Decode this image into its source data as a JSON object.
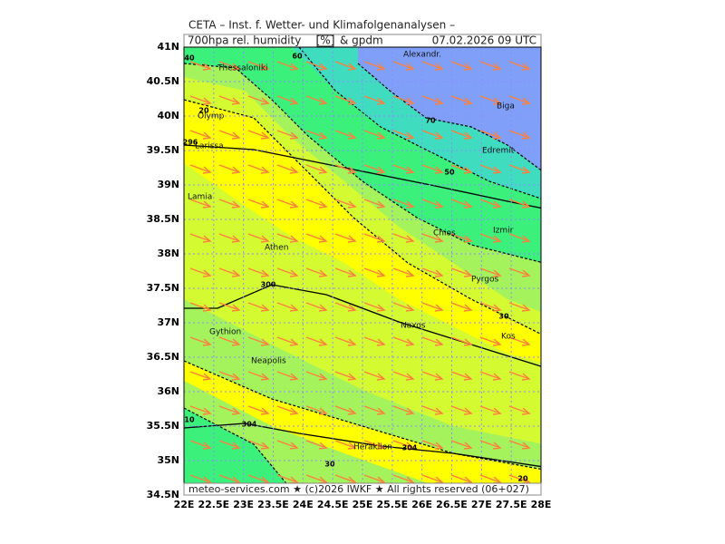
{
  "header": {
    "title": "CETA – Inst. f. Wetter- und Klimafolgenanalysen –",
    "field": "700hpa rel. humidity",
    "unit": "[%]",
    "field2": "& gpdm",
    "time": "07.02.2026 09 UTC"
  },
  "axes": {
    "lat_ticks": [
      {
        "value": 41,
        "label": "41N"
      },
      {
        "value": 40.5,
        "label": "40.5N"
      },
      {
        "value": 40,
        "label": "40N"
      },
      {
        "value": 39.5,
        "label": "39.5N"
      },
      {
        "value": 39,
        "label": "39N"
      },
      {
        "value": 38.5,
        "label": "38.5N"
      },
      {
        "value": 38,
        "label": "38N"
      },
      {
        "value": 37.5,
        "label": "37.5N"
      },
      {
        "value": 37,
        "label": "37N"
      },
      {
        "value": 36.5,
        "label": "36.5N"
      },
      {
        "value": 36,
        "label": "36N"
      },
      {
        "value": 35.5,
        "label": "35.5N"
      },
      {
        "value": 35,
        "label": "35N"
      },
      {
        "value": 34.5,
        "label": "34.5N"
      }
    ],
    "lon_ticks": [
      {
        "value": 22,
        "label": "22E"
      },
      {
        "value": 22.5,
        "label": "22.5E"
      },
      {
        "value": 23,
        "label": "23E"
      },
      {
        "value": 23.5,
        "label": "23.5E"
      },
      {
        "value": 24,
        "label": "24E"
      },
      {
        "value": 24.5,
        "label": "24.5E"
      },
      {
        "value": 25,
        "label": "25E"
      },
      {
        "value": 25.5,
        "label": "25.5E"
      },
      {
        "value": 26,
        "label": "26E"
      },
      {
        "value": 26.5,
        "label": "26.5E"
      },
      {
        "value": 27,
        "label": "27E"
      },
      {
        "value": 27.5,
        "label": "27.5E"
      },
      {
        "value": 28,
        "label": "28E"
      }
    ]
  },
  "places": [
    "Thessaloniki",
    "Alexandr.",
    "Biga",
    "Olymp",
    "Larissa",
    "Edremit",
    "Lamia",
    "Athen",
    "Chios",
    "Izmir",
    "Pyrgos",
    "Gythion",
    "Naxos",
    "Kos",
    "Neapolis",
    "Heraklion"
  ],
  "contour_labels": [
    "40",
    "60",
    "70",
    "20",
    "50",
    "30",
    "296",
    "300",
    "304",
    "10",
    "304",
    "30",
    "20"
  ],
  "footer": "meteo-services.com ★ (c)2026 IWKF ★ All rights reserved (06+027)"
}
